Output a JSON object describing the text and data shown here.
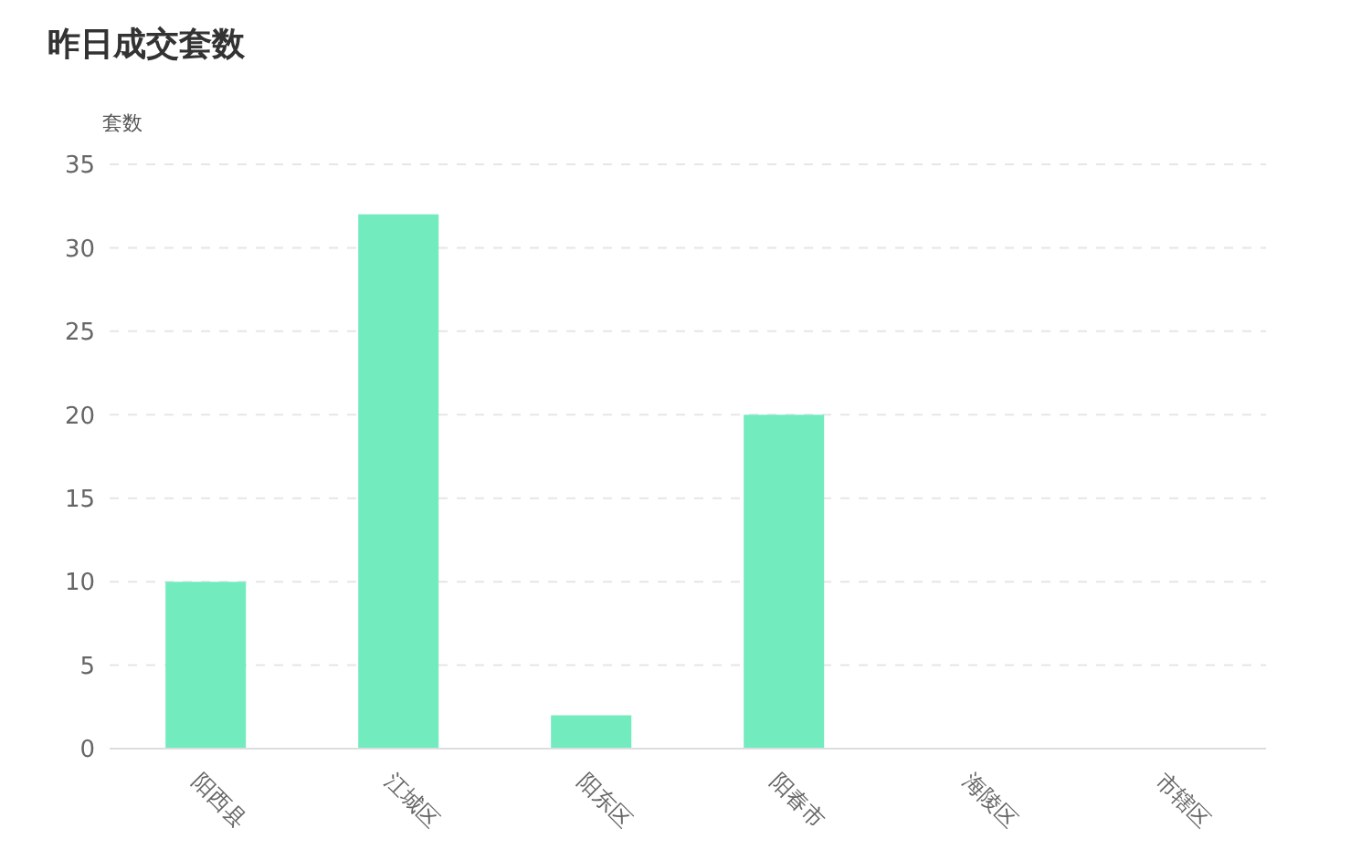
{
  "chart_data": {
    "type": "bar",
    "title": "昨日成交套数",
    "ylabel": "套数",
    "categories": [
      "阳西县",
      "江城区",
      "阳东区",
      "阳春市",
      "海陵区",
      "市辖区"
    ],
    "values": [
      10,
      32,
      2,
      20,
      0,
      0
    ],
    "color": "#72ecbf",
    "ylim": [
      0,
      35
    ],
    "yticks": [
      0,
      5,
      10,
      15,
      20,
      25,
      30,
      35
    ],
    "grid": "y"
  }
}
